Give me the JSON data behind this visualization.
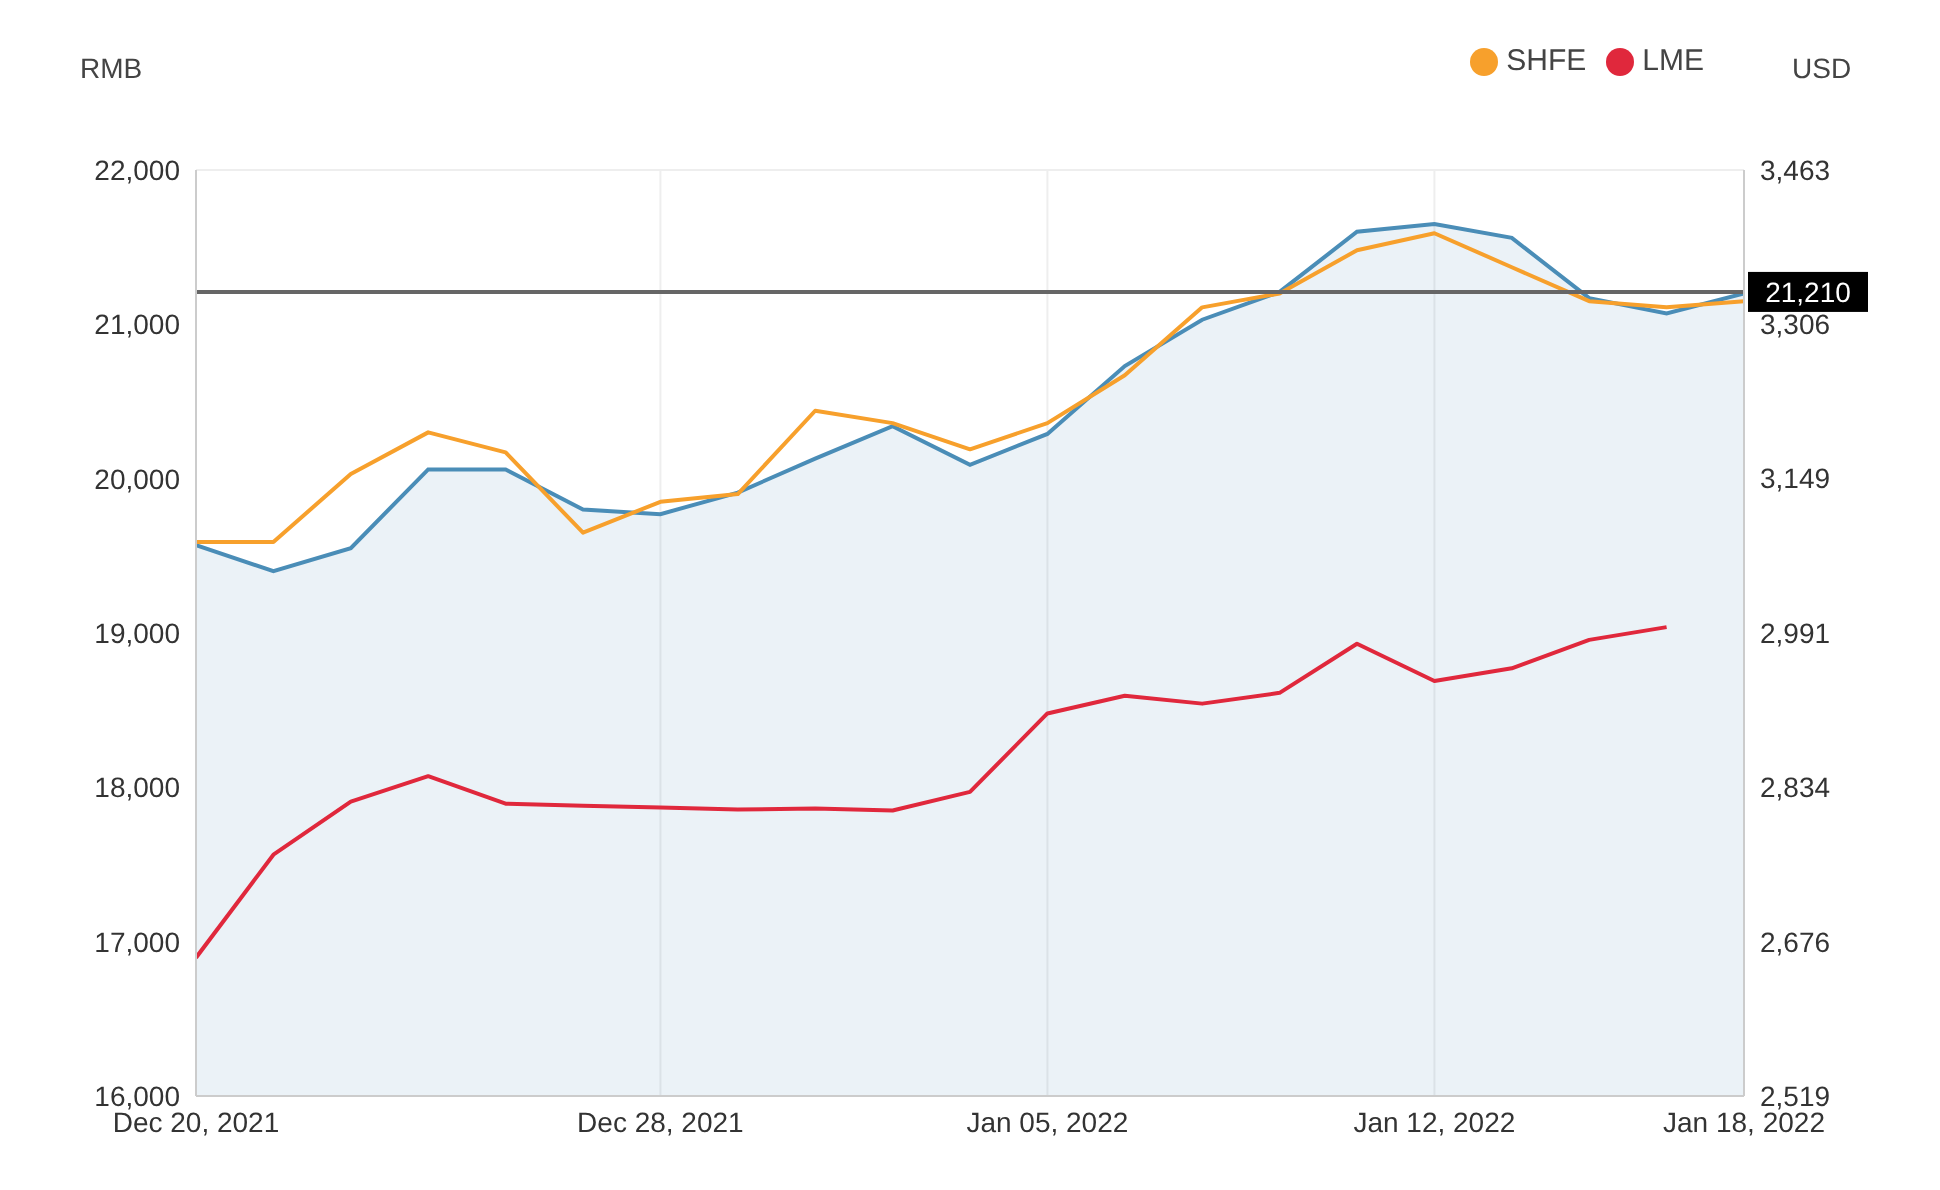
{
  "chart_data": {
    "type": "line",
    "ylabel": "RMB",
    "y2label": "USD",
    "categories": [
      "Dec 20, 2021",
      null,
      null,
      null,
      null,
      null,
      "Dec 28, 2021",
      null,
      null,
      null,
      null,
      "Jan 05, 2022",
      null,
      null,
      null,
      null,
      "Jan 12, 2022",
      null,
      null,
      null,
      "Jan 18, 2022"
    ],
    "series": [
      {
        "type": "area",
        "color": "#4a8db7",
        "values": [
          19570,
          19400,
          19550,
          20060,
          20060,
          19800,
          19770,
          19910,
          20130,
          20340,
          20090,
          20290,
          20730,
          21030,
          21210,
          21600,
          21650,
          21560,
          21170,
          21070,
          21200
        ]
      },
      {
        "name": "SHFE",
        "color": "#f7a02c",
        "values": [
          19590,
          19590,
          20030,
          20300,
          20170,
          19650,
          19850,
          19900,
          20440,
          20360,
          20190,
          20360,
          20670,
          21110,
          21200,
          21480,
          21590,
          21370,
          21150,
          21110,
          21150
        ]
      },
      {
        "name": "LME",
        "color": "#e0283c",
        "axis": "y2",
        "values": [
          2660,
          2765,
          2819,
          2845,
          2817,
          2815,
          2813,
          2811,
          2812,
          2810,
          2829,
          2909,
          2927,
          2919,
          2930,
          2980,
          2942,
          2955,
          2984,
          2997,
          null
        ]
      }
    ],
    "ylim": [
      16000,
      22000
    ],
    "yticks": [
      {
        "value": 16000,
        "label": "16,000"
      },
      {
        "value": 17000,
        "label": "17,000"
      },
      {
        "value": 18000,
        "label": "18,000"
      },
      {
        "value": 19000,
        "label": "19,000"
      },
      {
        "value": 20000,
        "label": "20,000"
      },
      {
        "value": 21000,
        "label": "21,000"
      },
      {
        "value": 22000,
        "label": "22,000"
      }
    ],
    "y2lim": [
      2519,
      3463
    ],
    "y2ticks": [
      {
        "value": 2519,
        "label": "2,519"
      },
      {
        "value": 2676,
        "label": "2,676"
      },
      {
        "value": 2834,
        "label": "2,834"
      },
      {
        "value": 2991,
        "label": "2,991"
      },
      {
        "value": 3149,
        "label": "3,149"
      },
      {
        "value": 3306,
        "label": "3,306"
      },
      {
        "value": 3463,
        "label": "3,463"
      }
    ],
    "ref_lines": [
      {
        "axis": "y",
        "value": 21210,
        "label": "21,210",
        "color": "#666666"
      }
    ],
    "grid": true,
    "legend": "top right"
  }
}
